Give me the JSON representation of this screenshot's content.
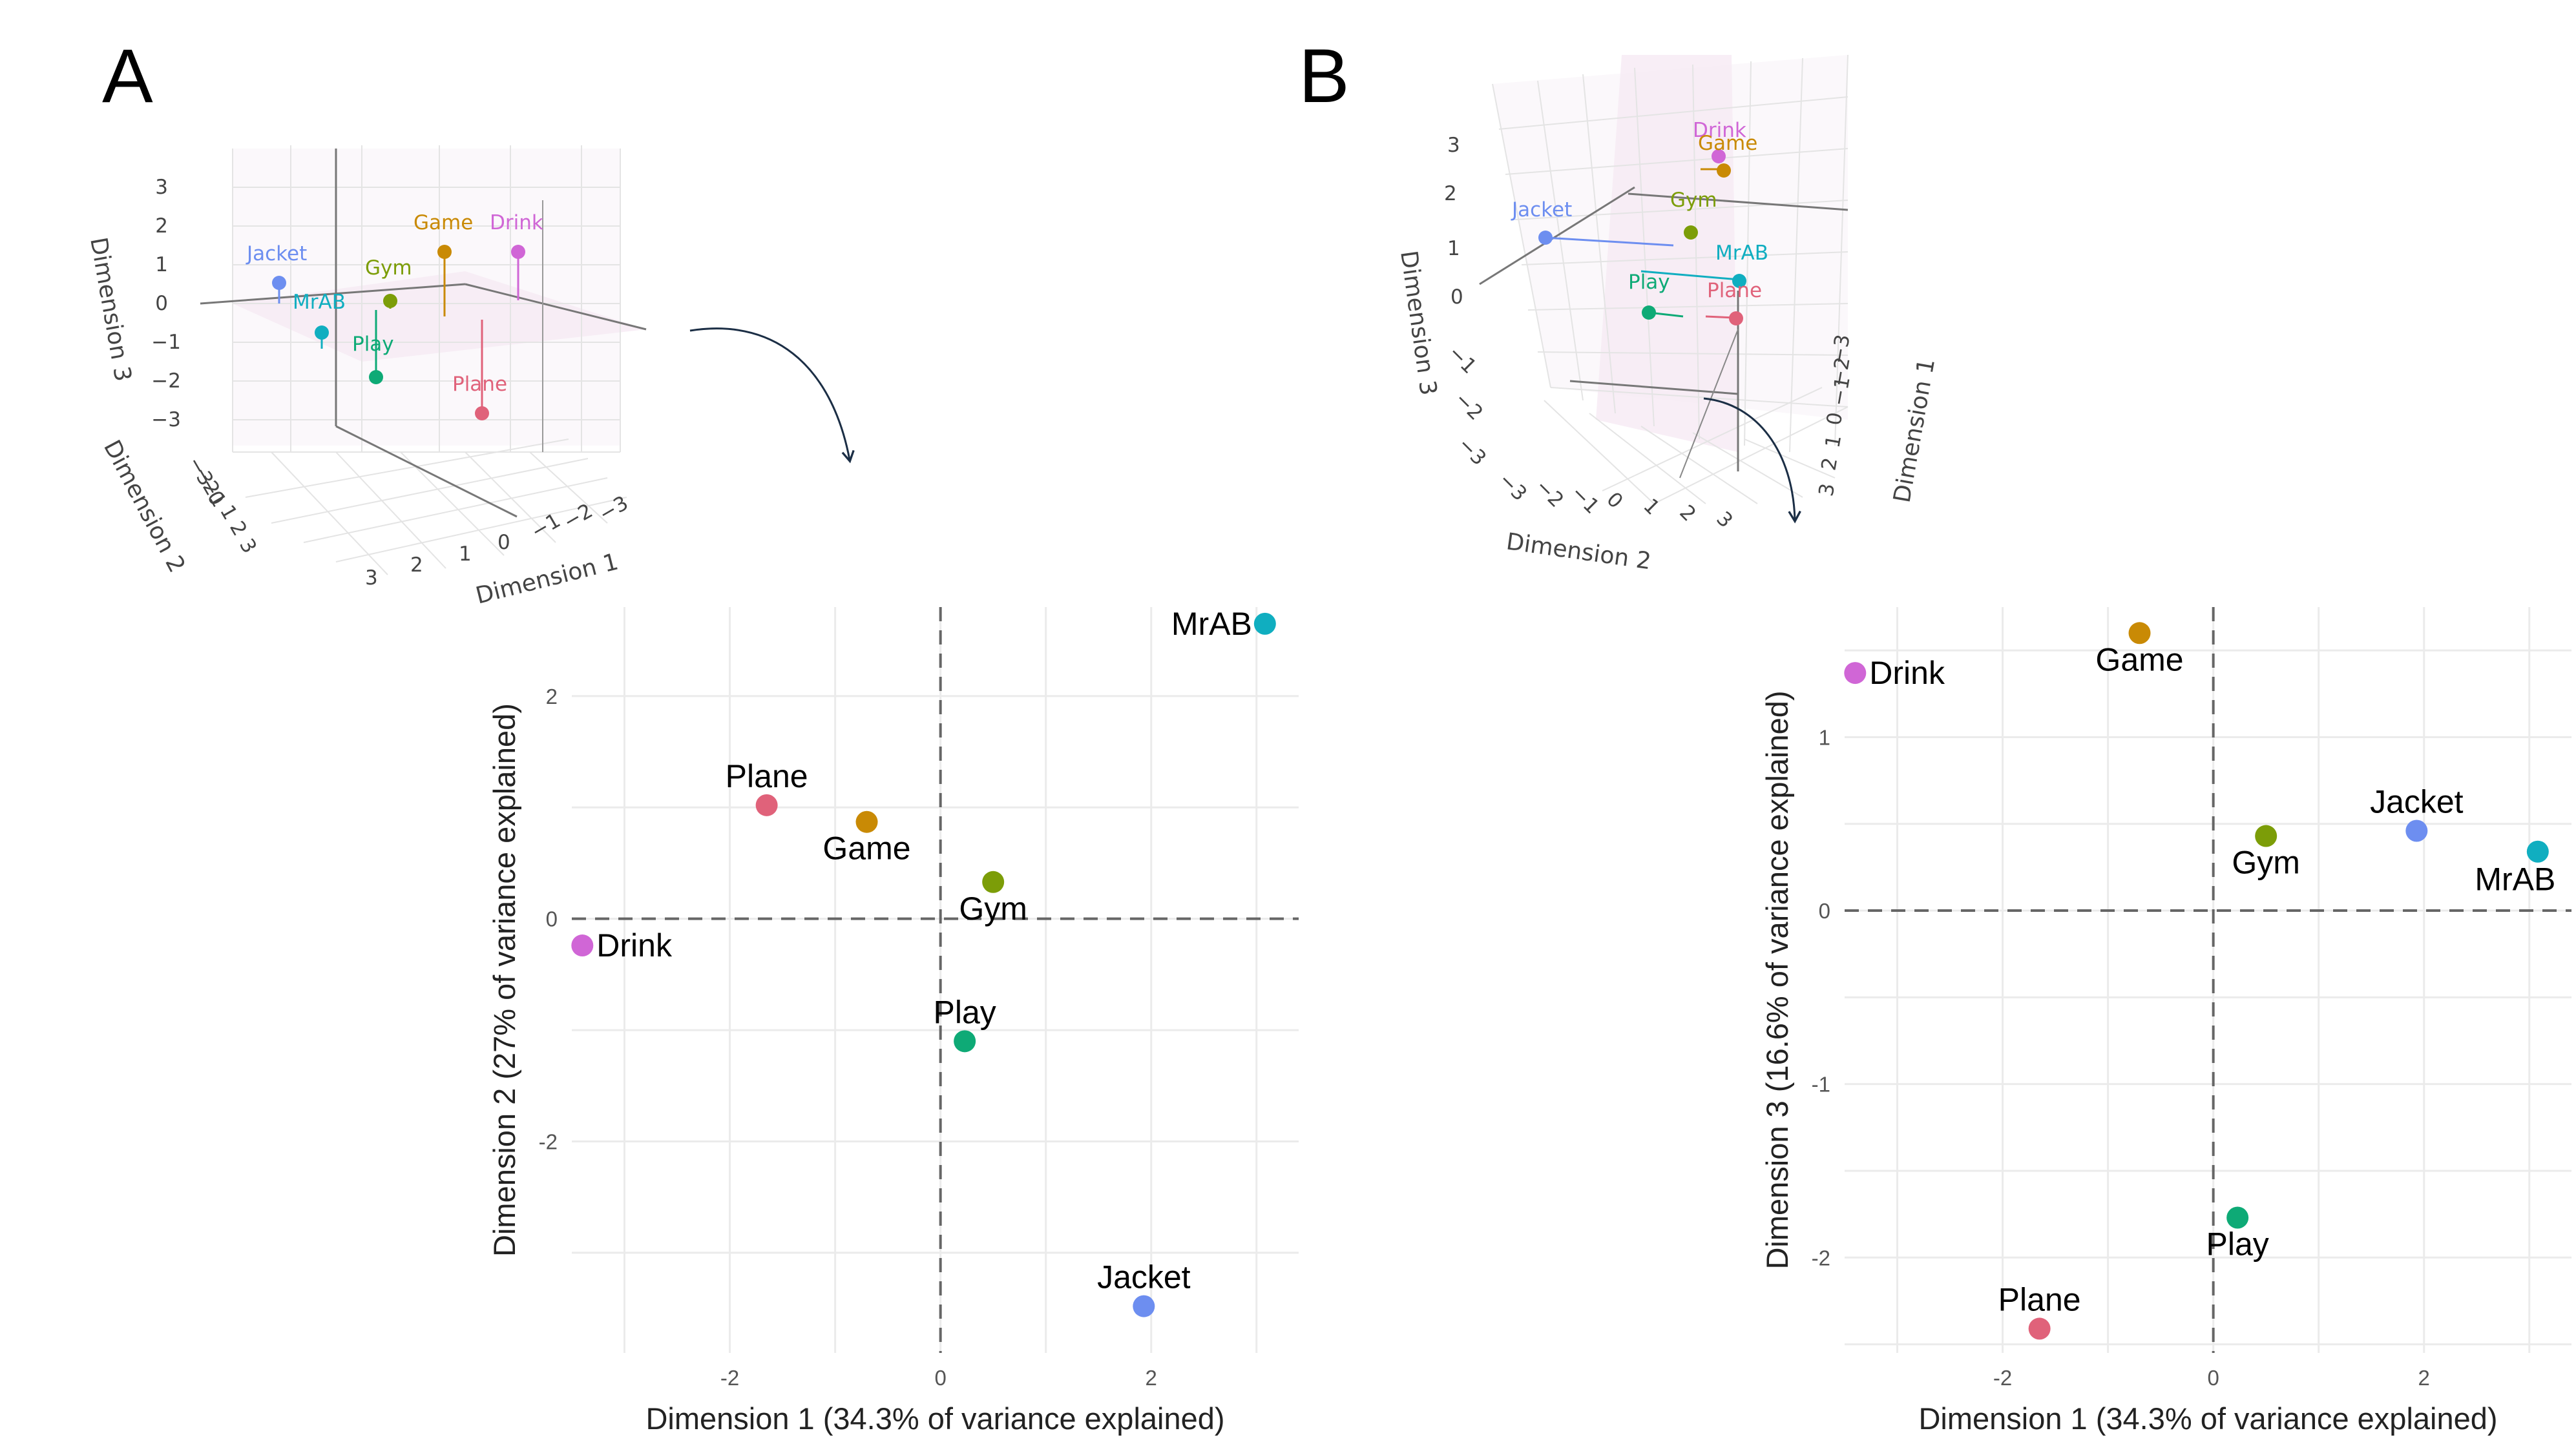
{
  "panel_a": {
    "letter": "A"
  },
  "panel_b": {
    "letter": "B"
  },
  "colors": {
    "Jacket": "#6d8ef0",
    "MrAB": "#10aec0",
    "Play": "#0eaa76",
    "Gym": "#7c9d08",
    "Game": "#c98a05",
    "Drink": "#d066d6",
    "Plane": "#e0627a",
    "arrow": "#1b2e45"
  },
  "chart_data": [
    {
      "type": "scatter",
      "panel": "A",
      "xlabel": "Dimension 1 (34.3% of variance explained)",
      "ylabel": "Dimension 2 (27% of variance explained)",
      "xlim": [
        -3.5,
        3.4
      ],
      "ylim": [
        -3.9,
        2.8
      ],
      "xticks": [
        -2,
        0,
        2
      ],
      "yticks": [
        -2,
        0,
        2
      ],
      "points": [
        {
          "name": "MrAB",
          "x": 3.08,
          "y": 2.65,
          "label_pos": "left"
        },
        {
          "name": "Plane",
          "x": -1.65,
          "y": 1.02,
          "label_pos": "above"
        },
        {
          "name": "Game",
          "x": -0.7,
          "y": 0.87,
          "label_pos": "below"
        },
        {
          "name": "Gym",
          "x": 0.5,
          "y": 0.33,
          "label_pos": "below"
        },
        {
          "name": "Drink",
          "x": -3.4,
          "y": -0.24,
          "label_pos": "right"
        },
        {
          "name": "Play",
          "x": 0.23,
          "y": -1.1,
          "label_pos": "above"
        },
        {
          "name": "Jacket",
          "x": 1.93,
          "y": -3.48,
          "label_pos": "above"
        }
      ]
    },
    {
      "type": "scatter",
      "panel": "B",
      "xlabel": "Dimension 1 (34.3% of variance explained)",
      "ylabel": "Dimension 3 (16.6% of variance explained)",
      "xlim": [
        -3.5,
        3.4
      ],
      "ylim": [
        -2.55,
        1.75
      ],
      "xticks": [
        -2,
        0,
        2
      ],
      "yticks": [
        -2,
        -1,
        0,
        1
      ],
      "points": [
        {
          "name": "Game",
          "x": -0.7,
          "y": 1.6,
          "label_pos": "below"
        },
        {
          "name": "Drink",
          "x": -3.4,
          "y": 1.37,
          "label_pos": "right"
        },
        {
          "name": "Gym",
          "x": 0.5,
          "y": 0.43,
          "label_pos": "below"
        },
        {
          "name": "Jacket",
          "x": 1.93,
          "y": 0.46,
          "label_pos": "above"
        },
        {
          "name": "MrAB",
          "x": 3.08,
          "y": 0.34,
          "label_pos": "below-left"
        },
        {
          "name": "Play",
          "x": 0.23,
          "y": -1.77,
          "label_pos": "below"
        },
        {
          "name": "Plane",
          "x": -1.65,
          "y": -2.41,
          "label_pos": "above"
        }
      ]
    }
  ],
  "plot3d_a": {
    "xlabel": "Dimension 1",
    "ylabel": "Dimension 2",
    "zlabel": "Dimension 3",
    "z_ticks": [
      "3",
      "2",
      "1",
      "0",
      "−1",
      "−2",
      "−3"
    ],
    "dim2_ticks": [
      "−3",
      "−2",
      "−1",
      "0",
      "1",
      "2",
      "3"
    ],
    "dim1_ticks": [
      "3",
      "2",
      "1",
      "0",
      "−1",
      "−2",
      "−3"
    ],
    "labels": [
      "Jacket",
      "MrAB",
      "Play",
      "Gym",
      "Game",
      "Drink",
      "Plane"
    ]
  },
  "plot3d_b": {
    "xlabel": "Dimension 1",
    "ylabel": "Dimension 2",
    "zlabel": "Dimension 3",
    "z_ticks": [
      "3",
      "2",
      "1",
      "0",
      "−1",
      "−2",
      "−3"
    ],
    "dim2_ticks": [
      "−3",
      "−2",
      "−1",
      "0",
      "1",
      "2",
      "3"
    ],
    "dim1_ticks": [
      "−3",
      "−2",
      "−1",
      "0",
      "1",
      "2",
      "3"
    ],
    "labels": [
      "Drink",
      "Game",
      "Jacket",
      "Gym",
      "MrAB",
      "Play",
      "Plane"
    ]
  }
}
